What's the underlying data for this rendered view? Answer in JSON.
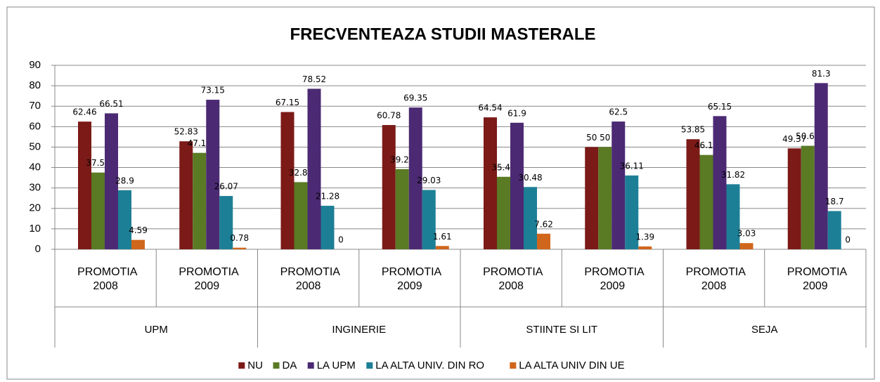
{
  "chart_data": {
    "type": "bar",
    "title": "FRECVENTEAZA STUDII MASTERALE",
    "categories": [
      "PROMOTIA 2008",
      "PROMOTIA 2009",
      "PROMOTIA 2008",
      "PROMOTIA 2009",
      "PROMOTIA 2008",
      "PROMOTIA 2009",
      "PROMOTIA 2008",
      "PROMOTIA 2009"
    ],
    "groups": [
      "UPM",
      "INGINERIE",
      "STIINTE SI LIT",
      "SEJA"
    ],
    "series": [
      {
        "name": "NU",
        "color": "#7b1a17",
        "values": [
          62.46,
          52.83,
          67.15,
          60.78,
          64.54,
          50,
          53.85,
          49.37
        ]
      },
      {
        "name": "DA",
        "color": "#5a7a24",
        "values": [
          37.54,
          47.17,
          32.85,
          39.22,
          35.46,
          50,
          46.15,
          50.63
        ]
      },
      {
        "name": "LA UPM",
        "color": "#4b2a73",
        "values": [
          66.51,
          73.15,
          78.52,
          69.35,
          61.9,
          62.5,
          65.15,
          81.3
        ]
      },
      {
        "name": "LA ALTA UNIV. DIN RO",
        "color": "#1d7f96",
        "values": [
          28.9,
          26.07,
          21.28,
          29.03,
          30.48,
          36.11,
          31.82,
          18.7
        ]
      },
      {
        "name": "LA ALTA UNIV DIN UE",
        "color": "#d0661b",
        "values": [
          4.59,
          0.78,
          0,
          1.61,
          7.62,
          1.39,
          3.03,
          0
        ]
      }
    ],
    "ylim": [
      0,
      90
    ],
    "yticks": [
      0,
      10,
      20,
      30,
      40,
      50,
      60,
      70,
      80,
      90
    ],
    "grid": true,
    "legend": "bottom"
  }
}
